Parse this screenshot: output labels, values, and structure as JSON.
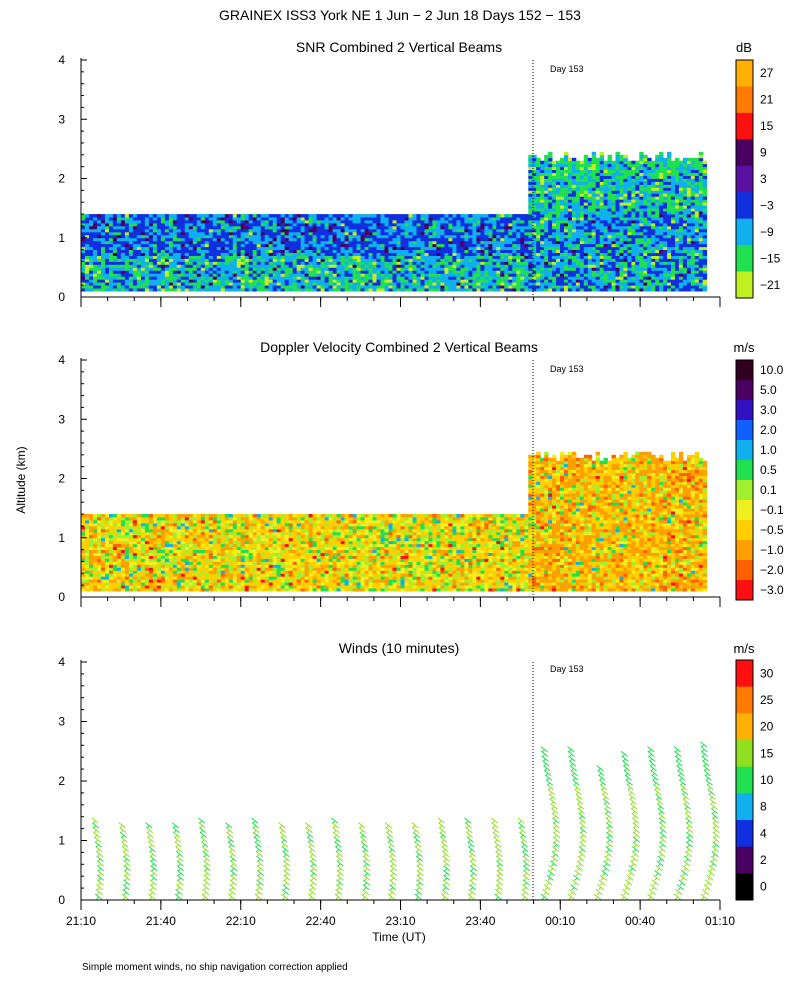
{
  "title": "GRAINEX ISS3 York NE    1 Jun −  2 Jun 18 Days 152 − 153",
  "ylabel": "Altitude (km)",
  "xlabel": "Time (UT)",
  "footnote": "Simple moment winds, no ship navigation correction applied",
  "chart_data": [
    {
      "type": "heatmap",
      "title": "SNR Combined 2 Vertical Beams",
      "units": "dB",
      "ylabel": "Altitude (km)",
      "ylim": [
        0,
        4
      ],
      "yticks": [
        "0",
        "1",
        "2",
        "3",
        "4"
      ],
      "day_marker_label": "Day 153",
      "colorbar_labels": [
        "27",
        "21",
        "15",
        "9",
        "3",
        "−3",
        "−9",
        "−15",
        "−21"
      ],
      "colors": [
        "#ffb000",
        "#ff7a00",
        "#ff1010",
        "#4a0060",
        "#5a10a0",
        "#1030e0",
        "#10b0f0",
        "#20e050",
        "#c0f020"
      ],
      "segments": [
        {
          "start": "21:10",
          "end": "23:58",
          "top_km": 1.4,
          "dominant": "-9 to -3 dB"
        },
        {
          "start": "23:58",
          "end": "01:05",
          "top_km": 2.4,
          "dominant": "-15 to -3 dB"
        }
      ]
    },
    {
      "type": "heatmap",
      "title": "Doppler Velocity Combined 2 Vertical Beams",
      "units": "m/s",
      "ylabel": "Altitude (km)",
      "ylim": [
        0,
        4
      ],
      "yticks": [
        "0",
        "1",
        "2",
        "3",
        "4"
      ],
      "day_marker_label": "Day 153",
      "colorbar_labels": [
        "10.0",
        "5.0",
        "3.0",
        "2.0",
        "1.0",
        "0.5",
        "0.1",
        "−0.1",
        "−0.5",
        "−1.0",
        "−2.0",
        "−3.0"
      ],
      "colors": [
        "#300020",
        "#4a0060",
        "#3010c0",
        "#1060ff",
        "#10b0f0",
        "#20e050",
        "#a0f030",
        "#f0f020",
        "#ffd000",
        "#ffa000",
        "#ff6000",
        "#ff1010"
      ],
      "segments": [
        {
          "start": "21:10",
          "end": "23:58",
          "top_km": 1.4,
          "dominant": "-0.5 to 0.1 m/s"
        },
        {
          "start": "23:58",
          "end": "01:05",
          "top_km": 2.4,
          "dominant": "-1.0 to -0.1 m/s"
        }
      ]
    },
    {
      "type": "scatter",
      "title": "Winds (10 minutes)",
      "units": "m/s",
      "ylabel": "Altitude (km)",
      "ylim": [
        0,
        4
      ],
      "yticks": [
        "0",
        "1",
        "2",
        "3",
        "4"
      ],
      "day_marker_label": "Day 153",
      "colorbar_labels": [
        "30",
        "25",
        "20",
        "15",
        "10",
        "8",
        "4",
        "2",
        "0"
      ],
      "colors": [
        "#ff1010",
        "#ff7a00",
        "#ffb000",
        "#90e020",
        "#20e050",
        "#10b0f0",
        "#1030e0",
        "#4a0060",
        "#000000"
      ],
      "profile_times": [
        "21:15",
        "21:25",
        "21:35",
        "21:45",
        "21:55",
        "22:05",
        "22:15",
        "22:25",
        "22:35",
        "22:45",
        "22:55",
        "23:05",
        "23:15",
        "23:25",
        "23:35",
        "23:45",
        "23:55",
        "00:05",
        "00:15",
        "00:25",
        "00:35",
        "00:45",
        "00:55",
        "01:05"
      ],
      "profile_tops_km": [
        1.4,
        1.3,
        1.35,
        1.35,
        1.4,
        1.35,
        1.4,
        1.35,
        1.35,
        1.4,
        1.35,
        1.35,
        1.35,
        1.4,
        1.4,
        1.4,
        1.4,
        2.65,
        2.6,
        2.3,
        2.5,
        2.65,
        2.65,
        2.7
      ],
      "barbs": "pennant wind barbs every 0.1 km, mostly 15–20 m/s"
    }
  ],
  "xticks": [
    "21:10",
    "21:40",
    "22:10",
    "22:40",
    "23:10",
    "23:40",
    "00:10",
    "00:40",
    "01:10"
  ]
}
